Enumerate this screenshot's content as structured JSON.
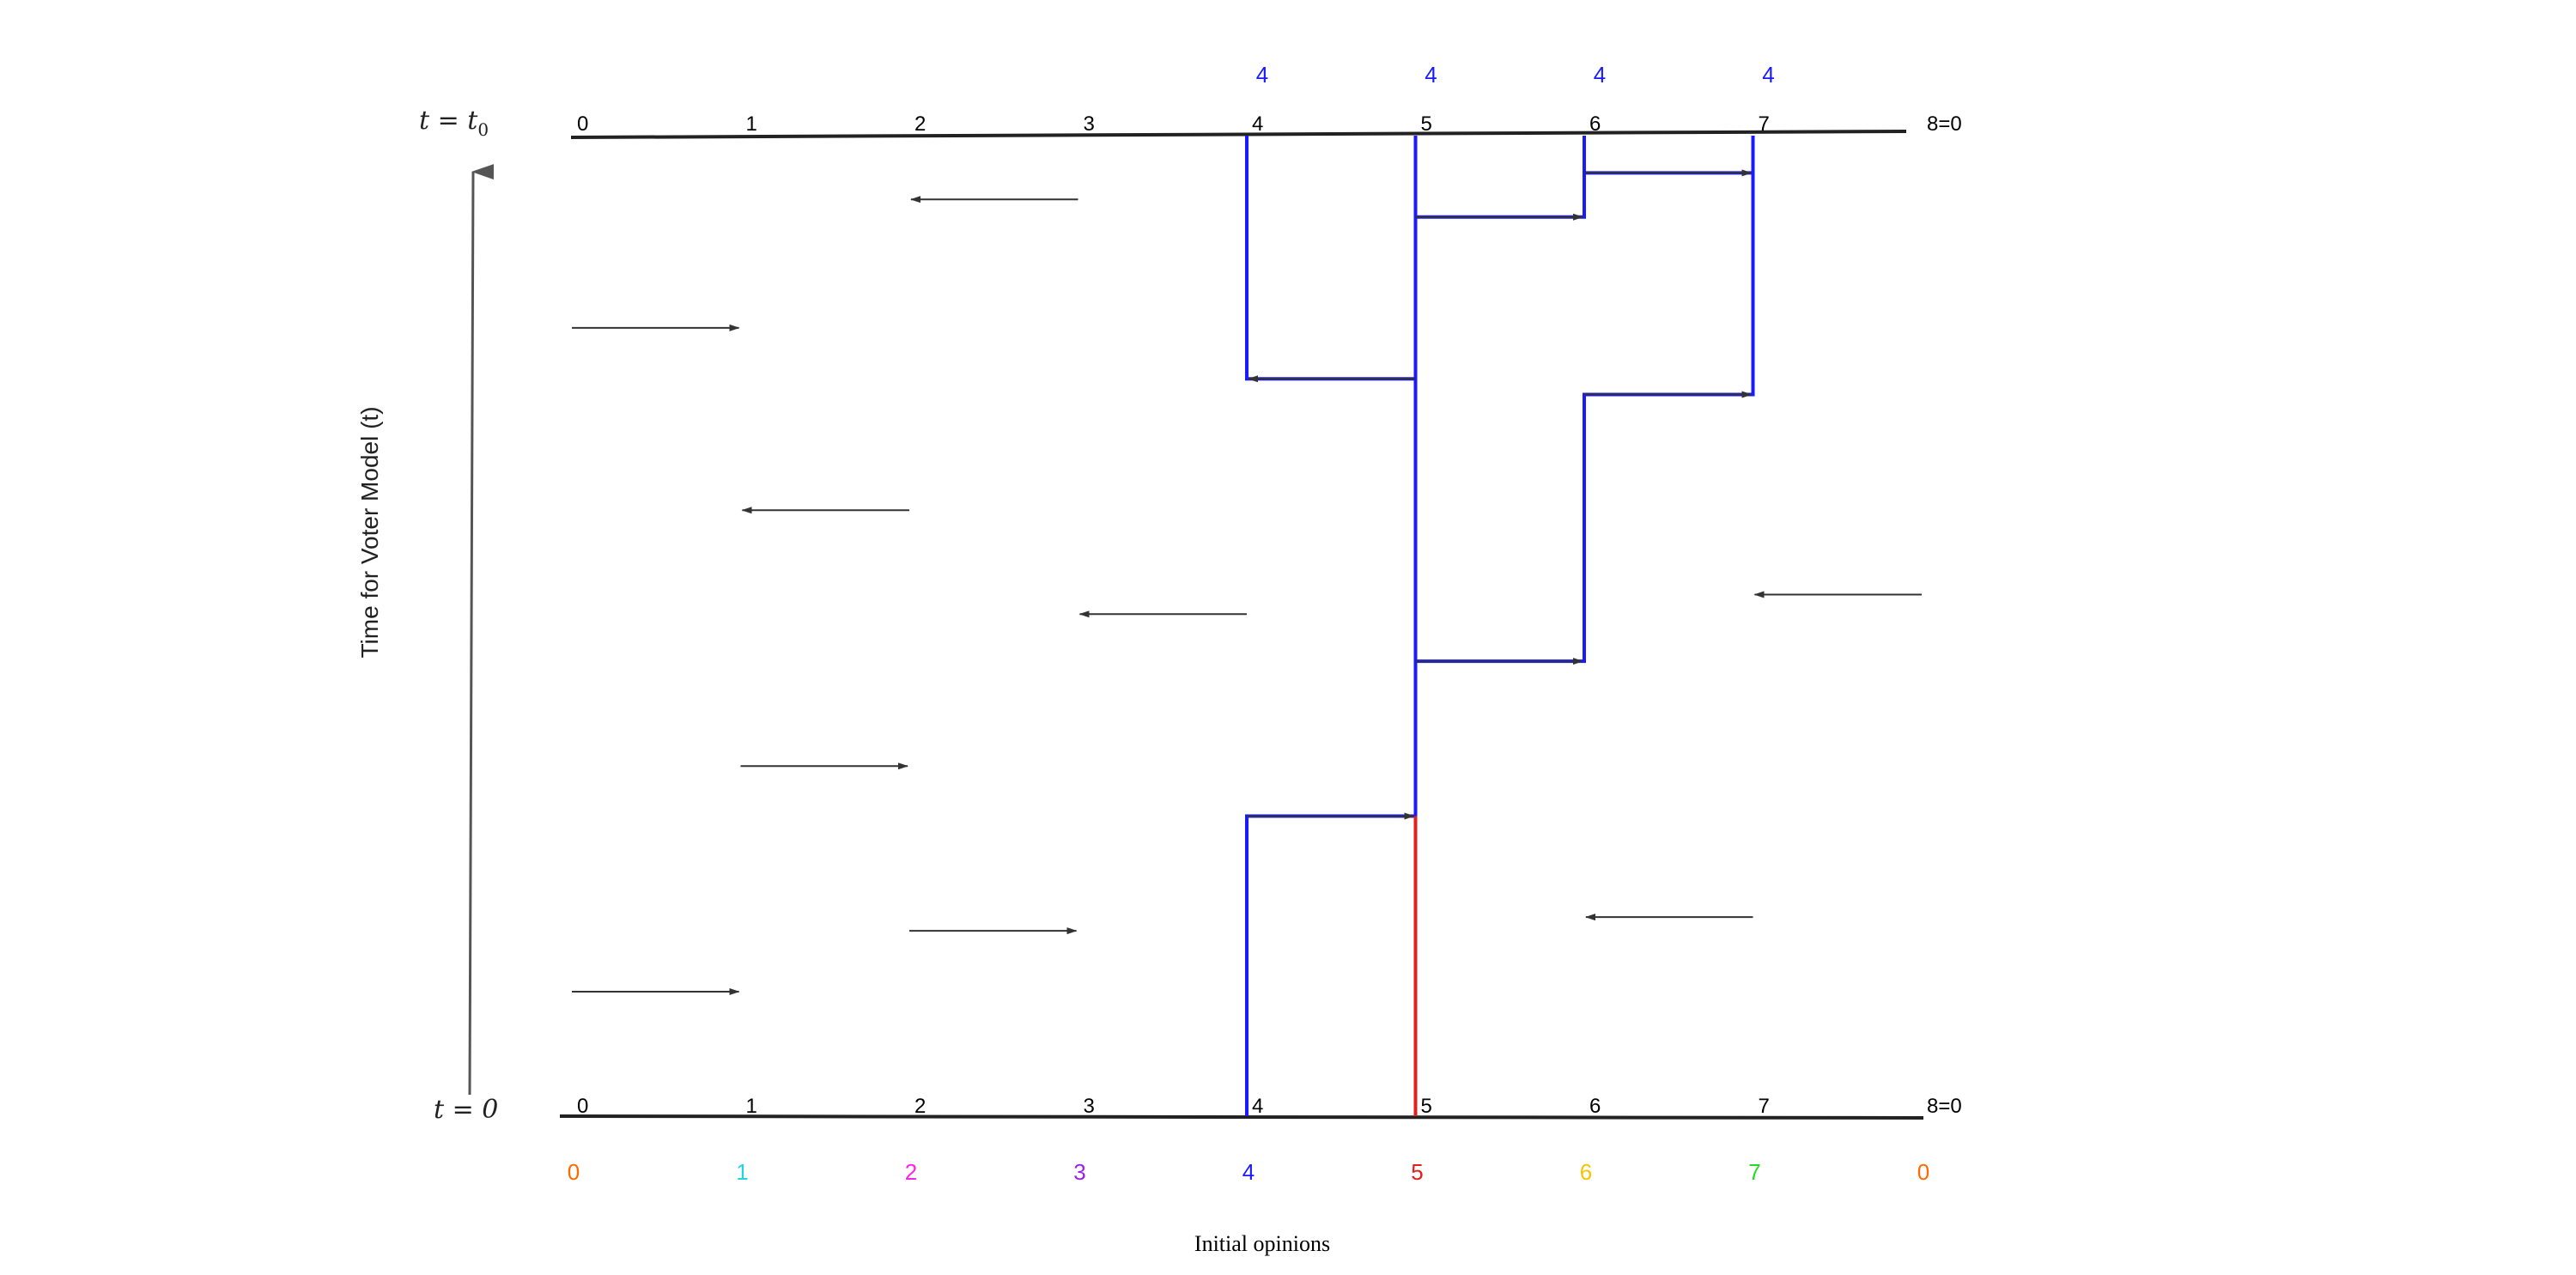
{
  "time_top_label": {
    "main": "t = t",
    "sub": "0"
  },
  "time_bottom_label": "t = 0",
  "y_axis_title": "Time for Voter Model (t)",
  "x_axis_title": "Initial opinions",
  "top_sites": [
    "0",
    "1",
    "2",
    "3",
    "4",
    "5",
    "6",
    "7",
    "8=0"
  ],
  "bottom_sites": [
    "0",
    "1",
    "2",
    "3",
    "4",
    "5",
    "6",
    "7",
    "8=0"
  ],
  "final_opinions": [
    {
      "site": 4,
      "label": "4",
      "color": "#1a1aff"
    },
    {
      "site": 5,
      "label": "4",
      "color": "#1a1aff"
    },
    {
      "site": 6,
      "label": "4",
      "color": "#1a1aff"
    },
    {
      "site": 7,
      "label": "4",
      "color": "#1a1aff"
    }
  ],
  "initial_opinions": [
    {
      "label": "0",
      "color": "#ff6a00"
    },
    {
      "label": "1",
      "color": "#22d3e6"
    },
    {
      "label": "2",
      "color": "#ff22e0"
    },
    {
      "label": "3",
      "color": "#9b22e6"
    },
    {
      "label": "4",
      "color": "#1a1aff"
    },
    {
      "label": "5",
      "color": "#e0201c"
    },
    {
      "label": "6",
      "color": "#f5c400"
    },
    {
      "label": "7",
      "color": "#22dd22"
    },
    {
      "label": "0",
      "color": "#ff6a00"
    }
  ],
  "arrows": [
    {
      "from": 3,
      "to": 2,
      "t": 0.935
    },
    {
      "from": 5,
      "to": 6,
      "t": 0.917
    },
    {
      "from": 6,
      "to": 7,
      "t": 0.962
    },
    {
      "from": 0,
      "to": 1,
      "t": 0.804
    },
    {
      "from": 5,
      "to": 4,
      "t": 0.752
    },
    {
      "from": 6,
      "to": 7,
      "t": 0.736
    },
    {
      "from": 2,
      "to": 1,
      "t": 0.618
    },
    {
      "from": 4,
      "to": 3,
      "t": 0.512
    },
    {
      "from": 8,
      "to": 7,
      "t": 0.532
    },
    {
      "from": 5,
      "to": 6,
      "t": 0.464
    },
    {
      "from": 1,
      "to": 2,
      "t": 0.357
    },
    {
      "from": 4,
      "to": 5,
      "t": 0.306
    },
    {
      "from": 2,
      "to": 3,
      "t": 0.189
    },
    {
      "from": 7,
      "to": 6,
      "t": 0.203
    },
    {
      "from": 0,
      "to": 1,
      "t": 0.127
    }
  ],
  "ancestral_paths": [
    {
      "color": "#1a1aff",
      "points": [
        [
          4,
          1.0
        ],
        [
          4,
          0.752
        ],
        [
          5,
          0.752
        ]
      ]
    },
    {
      "color": "#1a1aff",
      "points": [
        [
          5,
          1.0
        ],
        [
          5,
          0.306
        ],
        [
          4,
          0.306
        ],
        [
          4,
          0.0
        ]
      ]
    },
    {
      "color": "#1a1aff",
      "points": [
        [
          6,
          1.0
        ],
        [
          6,
          0.917
        ],
        [
          5,
          0.917
        ]
      ]
    },
    {
      "color": "#1a1aff",
      "points": [
        [
          7,
          1.0
        ],
        [
          7,
          0.962
        ],
        [
          6,
          0.962
        ],
        [
          6,
          0.917
        ]
      ]
    },
    {
      "color": "#1a1aff",
      "points": [
        [
          7,
          0.962
        ],
        [
          7,
          0.736
        ],
        [
          6,
          0.736
        ],
        [
          6,
          0.464
        ],
        [
          5,
          0.464
        ]
      ]
    },
    {
      "color": "#e0201c",
      "points": [
        [
          5,
          0.306
        ],
        [
          5,
          0.0
        ]
      ]
    }
  ],
  "colors": {
    "axis": "#222222",
    "arrow": "#333333",
    "time_arrow": "#555555"
  }
}
